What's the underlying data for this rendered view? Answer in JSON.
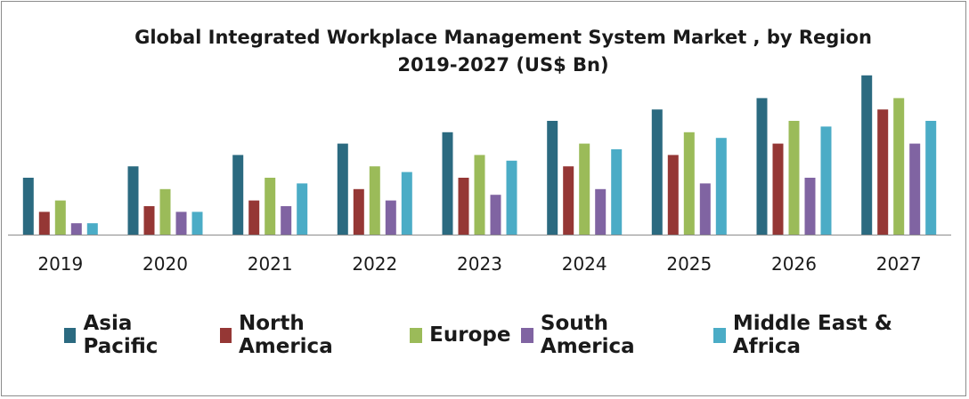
{
  "chart_data": {
    "type": "bar",
    "title": "Global Integrated Workplace Management System Market , by Region",
    "subtitle": "2019-2027 (US$ Bn)",
    "categories": [
      "2019",
      "2020",
      "2021",
      "2022",
      "2023",
      "2024",
      "2025",
      "2026",
      "2027"
    ],
    "series": [
      {
        "name": "Asia Pacific",
        "color": "#2b6a80",
        "values": [
          5.0,
          6.0,
          7.0,
          8.0,
          9.0,
          10.0,
          11.0,
          12.0,
          14.0
        ]
      },
      {
        "name": "North America",
        "color": "#953735",
        "values": [
          2.0,
          2.5,
          3.0,
          4.0,
          5.0,
          6.0,
          7.0,
          8.0,
          11.0
        ]
      },
      {
        "name": "Europe",
        "color": "#9bbb59",
        "values": [
          3.0,
          4.0,
          5.0,
          6.0,
          7.0,
          8.0,
          9.0,
          10.0,
          12.0
        ]
      },
      {
        "name": "South America",
        "color": "#8064a2",
        "values": [
          1.0,
          2.0,
          2.5,
          3.0,
          3.5,
          4.0,
          4.5,
          5.0,
          8.0
        ]
      },
      {
        "name": "Middle East & Africa",
        "color": "#4bacc6",
        "values": [
          1.0,
          2.0,
          4.5,
          5.5,
          6.5,
          7.5,
          8.5,
          9.5,
          10.0
        ]
      }
    ],
    "ylim": [
      0,
      14
    ],
    "grid": false,
    "legend_position": "bottom"
  }
}
